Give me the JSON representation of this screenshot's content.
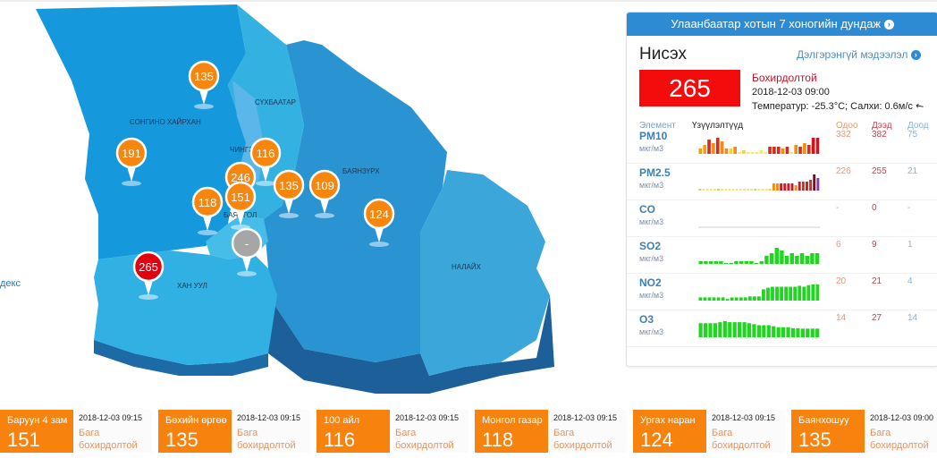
{
  "map": {
    "side_link": "декс",
    "districts": [
      "СОНГИНО ХАЙРХАН",
      "СҮХБААТАР",
      "ЧИНГЭ",
      "БАЯНЗҮРХ",
      "БАЯНГОЛ",
      "ХАН УУЛ",
      "НАЛАЙХ"
    ],
    "pins": [
      {
        "value": "135",
        "color": "#f7860f"
      },
      {
        "value": "191",
        "color": "#f7860f"
      },
      {
        "value": "116",
        "color": "#f7860f"
      },
      {
        "value": "246",
        "color": "#f7860f"
      },
      {
        "value": "151",
        "color": "#f7860f"
      },
      {
        "value": "118",
        "color": "#f7860f"
      },
      {
        "value": "135",
        "color": "#f7860f"
      },
      {
        "value": "109",
        "color": "#f7860f"
      },
      {
        "value": "124",
        "color": "#f7860f"
      },
      {
        "value": "265",
        "color": "#e3000f"
      },
      {
        "value": "-",
        "color": "#a6a6a6"
      }
    ]
  },
  "panel": {
    "header": "Улаанбаатар хотын 7 хоногийн дундаж",
    "station": "Нисэх",
    "more_link": "Дэлгэрэнгүй мэдээлэл",
    "aqi": "265",
    "status": "Бохирдолтой",
    "time": "2018-12-03 09:00",
    "weather": "Температур: -25.3°C; Салхи: 0.6м/с",
    "col_element": "Элемент",
    "col_trend": "Үзүүлэлтүүд",
    "col_now": "Одоо",
    "col_max": "Дээд",
    "col_min": "Доод",
    "rows": [
      {
        "name": "PM10",
        "unit": "мкг/м3",
        "now": "332",
        "max": "382",
        "min": "75",
        "bars": [
          3,
          5,
          8,
          6,
          9,
          7,
          3,
          3,
          4,
          1,
          2,
          1,
          1,
          1,
          2,
          1,
          4,
          4,
          4,
          3,
          4,
          1,
          5,
          4,
          6,
          5,
          9,
          9
        ],
        "colors": [
          "#f39c1e",
          "#f39c1e",
          "#d62c1a",
          "#f08c1a",
          "#d62c1a",
          "#f08c1a",
          "#f08c1a",
          "#f5d23c",
          "#f08c1a",
          "#f5e67a",
          "#f5d23c",
          "#f5e67a",
          "#f5e67a",
          "#f5e67a",
          "#f5e67a",
          "#f5e67a",
          "#d62c1a",
          "#d62c1a",
          "#d62c1a",
          "#f08c1a",
          "#d62c1a",
          "#f5e67a",
          "#f08c1a",
          "#d62c1a",
          "#f08c1a",
          "#d62c1a",
          "#d0141e",
          "#d0141e"
        ]
      },
      {
        "name": "PM2.5",
        "unit": "мкг/м3",
        "now": "226",
        "max": "255",
        "min": "21",
        "bars": [
          1,
          1,
          1,
          1,
          1,
          1,
          1,
          1,
          1,
          1,
          1,
          1,
          1,
          1,
          1,
          1,
          1,
          1,
          1,
          1,
          4,
          4,
          4,
          4,
          4,
          4,
          3,
          5,
          5,
          5,
          6,
          9,
          7
        ],
        "colors": [
          "#b7d96a",
          "#f5e67a",
          "#f5e67a",
          "#f5e67a",
          "#f5e67a",
          "#b7d96a",
          "#f5e67a",
          "#f5e67a",
          "#f5e67a",
          "#f5e67a",
          "#f5e67a",
          "#f5e67a",
          "#f5e67a",
          "#f5e67a",
          "#f5e67a",
          "#b7d96a",
          "#f5e67a",
          "#f5e67a",
          "#f5e67a",
          "#f5d23c",
          "#f08c1a",
          "#f08c1a",
          "#c81d2a",
          "#c81d2a",
          "#c81d2a",
          "#c81d2a",
          "#f08c1a",
          "#c81d2a",
          "#d62c1a",
          "#c81d2a",
          "#d62c1a",
          "#7a0a22",
          "#8e3bab"
        ]
      },
      {
        "name": "CO",
        "unit": "мкг/м3",
        "now": "-",
        "max": "0",
        "min": "-",
        "bars": [],
        "colors": []
      },
      {
        "name": "SO2",
        "unit": "мкг/м3",
        "now": "6",
        "max": "9",
        "min": "1",
        "bars": [
          1,
          1,
          1,
          1,
          1,
          0.3,
          0.3,
          1,
          1,
          1,
          1,
          0.3,
          1,
          3,
          4,
          6,
          5,
          3,
          4,
          3,
          4,
          3,
          4,
          4
        ],
        "colors": [
          "#1fd71f"
        ]
      },
      {
        "name": "NO2",
        "unit": "мкг/м3",
        "now": "20",
        "max": "21",
        "min": "4",
        "bars": [
          1,
          1,
          1,
          1,
          1,
          1,
          0.5,
          1,
          1,
          1,
          1,
          1.3,
          1.3,
          1.3,
          3.5,
          4,
          4.3,
          4.3,
          4.3,
          4.3,
          4.3,
          4.3,
          4.6,
          4.3,
          4.8,
          5,
          5
        ],
        "colors": [
          "#1fd71f"
        ]
      },
      {
        "name": "O3",
        "unit": "мкг/м3",
        "now": "14",
        "max": "27",
        "min": "14",
        "bars": [
          7,
          7,
          7,
          7,
          7.5,
          8,
          7.5,
          7.5,
          7.5,
          7.5,
          7,
          6.5,
          6,
          6,
          6,
          5.5,
          5,
          5,
          5,
          4.5,
          4.5,
          4.3,
          4.3,
          4.3,
          4.3
        ],
        "colors": [
          "#1fd71f"
        ]
      }
    ]
  },
  "cards": [
    {
      "name": "Баруун 4 зам",
      "value": "151",
      "time": "2018-12-03 09:15",
      "status": "Бага бохирдолтой"
    },
    {
      "name": "Бөхийн өргөө",
      "value": "135",
      "time": "2018-12-03 09:15",
      "status": "Бага бохирдолтой"
    },
    {
      "name": "100 айл",
      "value": "116",
      "time": "2018-12-03 09:15",
      "status": "Бага бохирдолтой"
    },
    {
      "name": "Монгол газар",
      "value": "118",
      "time": "2018-12-03 09:15",
      "status": "Бага бохирдолтой"
    },
    {
      "name": "Ургах наран",
      "value": "124",
      "time": "2018-12-03 09:15",
      "status": "Бага бохирдолтой"
    },
    {
      "name": "Баянхошуу",
      "value": "135",
      "time": "2018-12-03 09:00",
      "status": "Бага бохирдолтой"
    }
  ]
}
